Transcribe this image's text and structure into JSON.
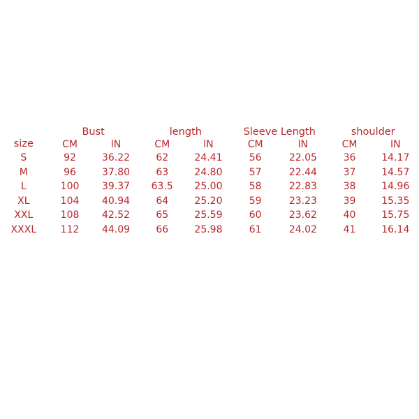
{
  "table": {
    "size_header": "size",
    "groups": [
      "Bust",
      "length",
      "Sleeve Length",
      "shoulder"
    ],
    "units": [
      "CM",
      "lN",
      "CM",
      "lN",
      "CM",
      "lN",
      "CM",
      "IN"
    ],
    "rows": [
      {
        "size": "S",
        "cells": [
          "92",
          "36.22",
          "62",
          "24.41",
          "56",
          "22.05",
          "36",
          "14.17"
        ]
      },
      {
        "size": "M",
        "cells": [
          "96",
          "37.80",
          "63",
          "24.80",
          "57",
          "22.44",
          "37",
          "14.57"
        ]
      },
      {
        "size": "L",
        "cells": [
          "100",
          "39.37",
          "63.5",
          "25.00",
          "58",
          "22.83",
          "38",
          "14.96"
        ]
      },
      {
        "size": "XL",
        "cells": [
          "104",
          "40.94",
          "64",
          "25.20",
          "59",
          "23.23",
          "39",
          "15.35"
        ]
      },
      {
        "size": "XXL",
        "cells": [
          "108",
          "42.52",
          "65",
          "25.59",
          "60",
          "23.62",
          "40",
          "15.75"
        ]
      },
      {
        "size": "XXXL",
        "cells": [
          "112",
          "44.09",
          "66",
          "25.98",
          "61",
          "24.02",
          "41",
          "16.14"
        ]
      }
    ]
  },
  "colors": {
    "text": "#b8262b",
    "background": "#ffffff"
  }
}
